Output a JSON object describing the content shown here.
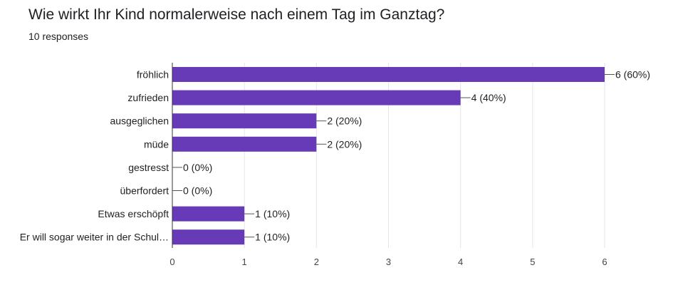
{
  "header": {
    "title": "Wie wirkt Ihr Kind normalerweise nach einem Tag im Ganztag?",
    "responses": "10 responses"
  },
  "chart_data": {
    "type": "bar",
    "orientation": "horizontal",
    "categories": [
      "fröhlich",
      "zufrieden",
      "ausgeglichen",
      "müde",
      "gestresst",
      "überfordert",
      "Etwas erschöpft",
      "Er will sogar weiter in der Schul…"
    ],
    "values": [
      6,
      4,
      2,
      2,
      0,
      0,
      1,
      1
    ],
    "value_labels": [
      "6 (60%)",
      "4 (40%)",
      "2 (20%)",
      "2 (20%)",
      "0 (0%)",
      "0 (0%)",
      "1 (10%)",
      "1 (10%)"
    ],
    "xlim": [
      0,
      6
    ],
    "xticks": [
      0,
      1,
      2,
      3,
      4,
      5,
      6
    ],
    "grid": true,
    "bar_color": "#673ab7"
  }
}
